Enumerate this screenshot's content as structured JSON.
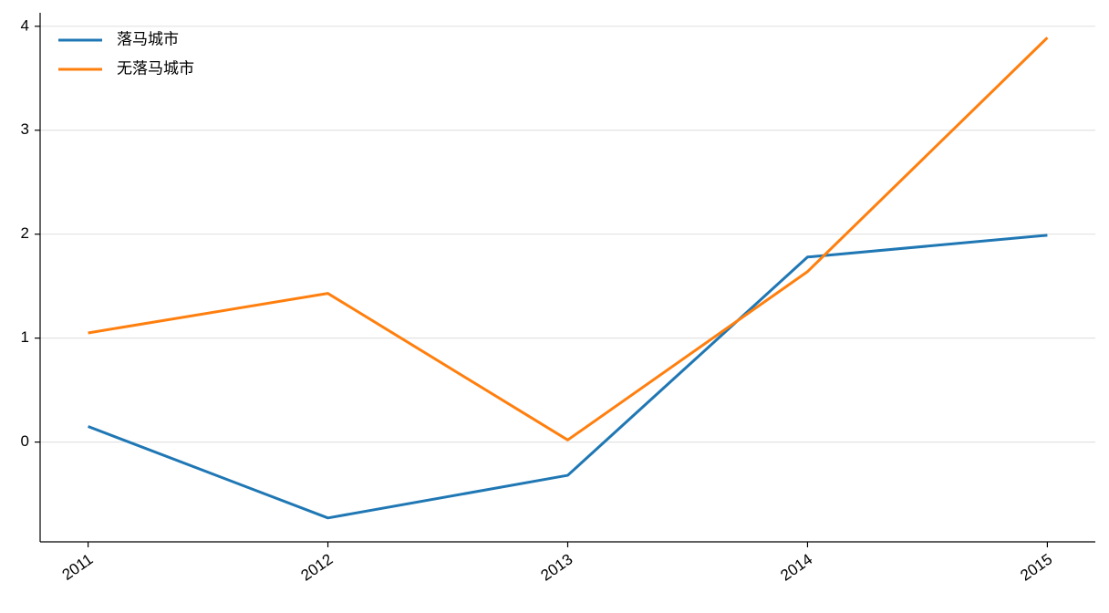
{
  "chart_data": {
    "type": "line",
    "x": [
      2011,
      2012,
      2013,
      2014,
      2015
    ],
    "series": [
      {
        "name": "落马城市",
        "color": "#1f77b4",
        "values": [
          0.15,
          -0.73,
          -0.32,
          1.78,
          1.99
        ]
      },
      {
        "name": "无落马城市",
        "color": "#ff7f0e",
        "values": [
          1.05,
          1.43,
          0.02,
          1.64,
          3.89
        ]
      }
    ],
    "xlim": [
      2010.8,
      2015.2
    ],
    "xticks": [
      2011,
      2012,
      2013,
      2014,
      2015
    ],
    "ylim": [
      -0.96,
      4.13
    ],
    "yticks": [
      0,
      1,
      2,
      3,
      4
    ],
    "grid": true,
    "legend": "upper left"
  }
}
